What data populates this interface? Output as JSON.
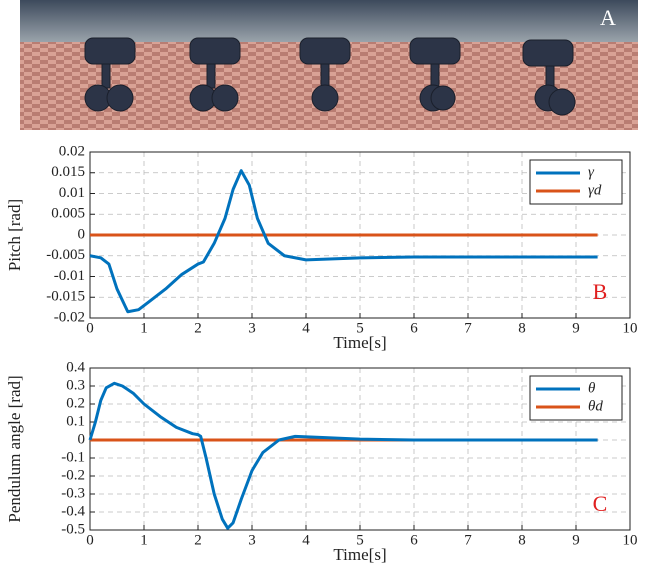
{
  "panel": {
    "label": "A"
  },
  "chart_data": [
    {
      "type": "line",
      "ylabel": "Pitch [rad]",
      "xlabel": "Time[s]",
      "annotation": "B",
      "xlim": [
        0,
        10
      ],
      "xticks": [
        0,
        1,
        2,
        3,
        4,
        5,
        6,
        7,
        8,
        9,
        10
      ],
      "ylim": [
        -0.02,
        0.02
      ],
      "yticks": [
        -0.02,
        -0.015,
        -0.01,
        -0.005,
        0,
        0.005,
        0.01,
        0.015,
        0.02
      ],
      "grid": true,
      "legend": "upper right",
      "x": [
        0,
        0.2,
        0.35,
        0.5,
        0.7,
        0.9,
        1.1,
        1.4,
        1.7,
        2.0,
        2.1,
        2.3,
        2.5,
        2.65,
        2.8,
        2.95,
        3.1,
        3.3,
        3.6,
        4.0,
        5.0,
        6.0,
        7.0,
        8.0,
        9.4
      ],
      "series": [
        {
          "name": "γ",
          "color": "#0072bd",
          "values": [
            -0.005,
            -0.0055,
            -0.007,
            -0.013,
            -0.0185,
            -0.018,
            -0.016,
            -0.013,
            -0.0095,
            -0.007,
            -0.0065,
            -0.002,
            0.004,
            0.011,
            0.0155,
            0.012,
            0.004,
            -0.002,
            -0.005,
            -0.006,
            -0.0055,
            -0.0053,
            -0.0053,
            -0.0053,
            -0.0053
          ]
        },
        {
          "name": "γd",
          "color": "#d95319",
          "values": [
            0,
            0,
            0,
            0,
            0,
            0,
            0,
            0,
            0,
            0,
            0,
            0,
            0,
            0,
            0,
            0,
            0,
            0,
            0,
            0,
            0,
            0,
            0,
            0,
            0
          ]
        }
      ]
    },
    {
      "type": "line",
      "ylabel": "Pendulum angle [rad]",
      "xlabel": "Time[s]",
      "annotation": "C",
      "xlim": [
        0,
        10
      ],
      "xticks": [
        0,
        1,
        2,
        3,
        4,
        5,
        6,
        7,
        8,
        9,
        10
      ],
      "ylim": [
        -0.5,
        0.4
      ],
      "yticks": [
        -0.5,
        -0.4,
        -0.3,
        -0.2,
        -0.1,
        0,
        0.1,
        0.2,
        0.3,
        0.4
      ],
      "grid": true,
      "legend": "upper right",
      "x": [
        0,
        0.1,
        0.2,
        0.3,
        0.45,
        0.6,
        0.8,
        1.0,
        1.3,
        1.6,
        1.9,
        2.0,
        2.05,
        2.15,
        2.3,
        2.45,
        2.55,
        2.65,
        2.8,
        3.0,
        3.2,
        3.5,
        3.8,
        4.2,
        5.0,
        6.0,
        9.4
      ],
      "series": [
        {
          "name": "θ",
          "color": "#0072bd",
          "values": [
            0,
            0.1,
            0.22,
            0.29,
            0.315,
            0.3,
            0.26,
            0.2,
            0.13,
            0.07,
            0.035,
            0.03,
            0.02,
            -0.1,
            -0.3,
            -0.44,
            -0.49,
            -0.46,
            -0.33,
            -0.17,
            -0.07,
            0,
            0.02,
            0.015,
            0.005,
            0,
            0
          ]
        },
        {
          "name": "θd",
          "color": "#d95319",
          "values": [
            0,
            0,
            0,
            0,
            0,
            0,
            0,
            0,
            0,
            0,
            0,
            0,
            0,
            0,
            0,
            0,
            0,
            0,
            0,
            0,
            0,
            0,
            0,
            0,
            0,
            0,
            0
          ]
        }
      ]
    }
  ]
}
